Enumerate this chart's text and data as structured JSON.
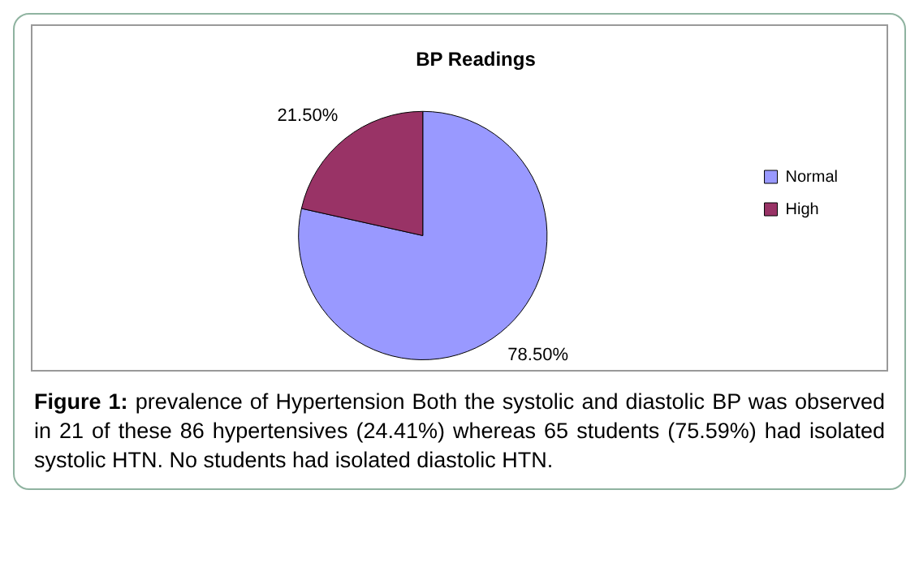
{
  "chart_data": {
    "type": "pie",
    "title": "BP Readings",
    "categories": [
      "Normal",
      "High"
    ],
    "values": [
      78.5,
      21.5
    ],
    "colors": [
      "#9999ff",
      "#993366"
    ],
    "value_labels": [
      "78.50%",
      "21.50%"
    ],
    "legend": "right",
    "annotations": [
      "Figure 1: prevalence of Hypertension Both the systolic and diastolic BP was observed in 21 of these 86 hypertensives (24.41%) whereas 65 students (75.59%) had isolated systolic HTN. No students had isolated diastolic HTN."
    ]
  }
}
